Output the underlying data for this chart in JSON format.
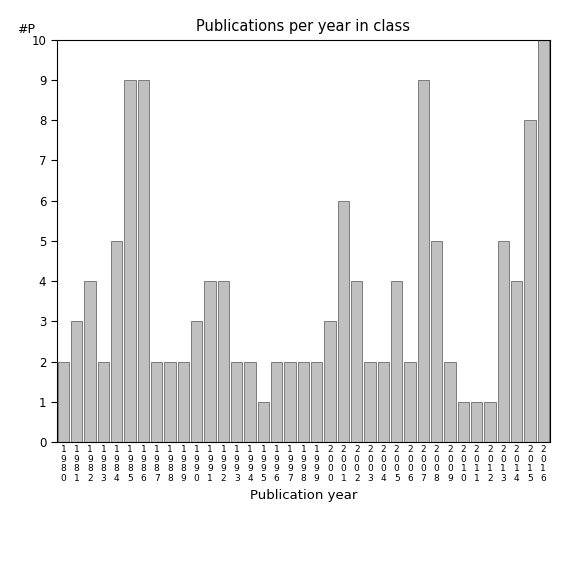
{
  "years": [
    1980,
    1981,
    1982,
    1983,
    1984,
    1985,
    1986,
    1987,
    1988,
    1989,
    1990,
    1991,
    1992,
    1993,
    1994,
    1995,
    1996,
    1997,
    1998,
    1999,
    2000,
    2001,
    2002,
    2003,
    2004,
    2005,
    2006,
    2007,
    2008,
    2009,
    2010,
    2011,
    2012,
    2013,
    2014,
    2015,
    2016
  ],
  "values": [
    2,
    3,
    4,
    2,
    5,
    9,
    9,
    2,
    2,
    2,
    3,
    4,
    4,
    2,
    2,
    1,
    2,
    2,
    2,
    2,
    3,
    6,
    4,
    2,
    2,
    4,
    2,
    9,
    5,
    2,
    1,
    1,
    1,
    5,
    4,
    8,
    10
  ],
  "title": "Publications per year in class",
  "xlabel": "Publication year",
  "ylabel": "#P",
  "ylim": [
    0,
    10
  ],
  "yticks": [
    0,
    1,
    2,
    3,
    4,
    5,
    6,
    7,
    8,
    9,
    10
  ],
  "bar_color": "#c0c0c0",
  "bar_edgecolor": "#555555",
  "figsize": [
    5.67,
    5.67
  ],
  "dpi": 100
}
